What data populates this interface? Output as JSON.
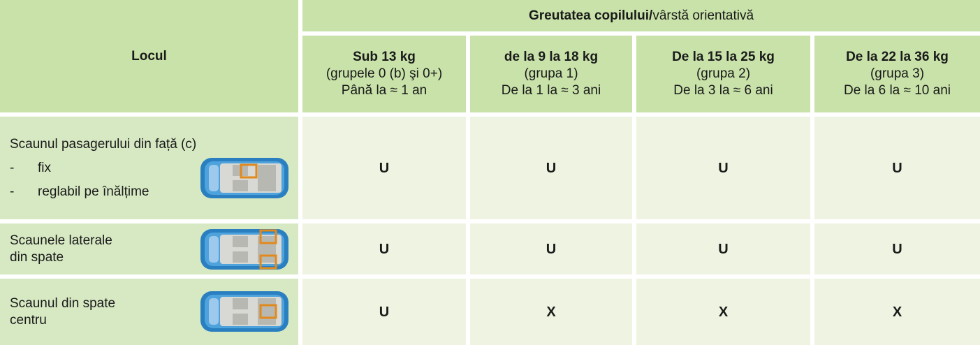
{
  "header": {
    "corner": "Locul",
    "group_bold": "Greutatea copilului/",
    "group_rest": "vârstă orientativă"
  },
  "columns": [
    {
      "title": "Sub 13 kg",
      "group": "(grupele 0 (b) şi 0+)",
      "age": "Până la ≈ 1 an"
    },
    {
      "title": "de la 9 la 18 kg",
      "group": "(grupa 1)",
      "age": "De la 1 la ≈ 3 ani"
    },
    {
      "title": "De la 15 la 25 kg",
      "group": "(grupa 2)",
      "age": "De la 3 la ≈ 6 ani"
    },
    {
      "title": "De la 22 la 36 kg",
      "group": "(grupa 3)",
      "age": "De la 6 la ≈ 10 ani"
    }
  ],
  "rows": [
    {
      "label": [
        "Scaunul pasagerului din față (c)"
      ],
      "items": [
        {
          "dash": "-",
          "text": "fix"
        },
        {
          "dash": "-",
          "text": "reglabil pe înălțime"
        }
      ],
      "cells": [
        "U",
        "U",
        "U",
        "U"
      ]
    },
    {
      "label": [
        "Scaunele laterale",
        "din spate"
      ],
      "cells": [
        "U",
        "U",
        "U",
        "U"
      ]
    },
    {
      "label": [
        "Scaunul din spate",
        "centru"
      ],
      "cells": [
        "U",
        "X",
        "X",
        "X"
      ]
    }
  ]
}
